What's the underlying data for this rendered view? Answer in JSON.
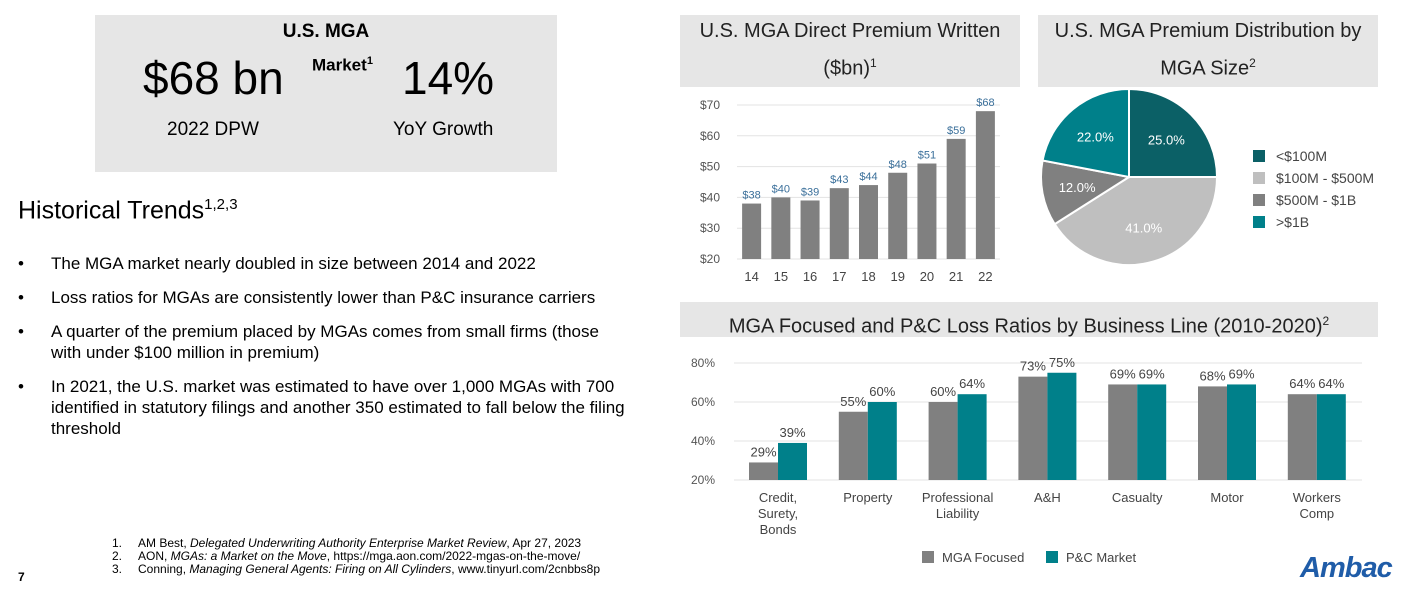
{
  "kpi": {
    "title_line1": "U.S. MGA",
    "title_line2": "Market",
    "title_sup": "1",
    "dpw_value": "$68 bn",
    "dpw_label": "2022 DPW",
    "growth_value": "14%",
    "growth_label": "YoY Growth"
  },
  "trends": {
    "heading": "Historical Trends",
    "heading_sup": "1,2,3",
    "bullets": [
      "The MGA market nearly doubled in size between 2014 and 2022",
      "Loss ratios for MGAs are consistently lower than P&C insurance carriers",
      "A quarter of the premium placed by MGAs comes from small firms (those with under $100 million in premium)",
      "In 2021, the U.S. market was estimated to have over 1,000 MGAs with 700 identified in statutory filings and another 350 estimated to fall below the filing threshold"
    ]
  },
  "footnotes": [
    {
      "num": "1.",
      "pre": "AM Best, ",
      "title": "Delegated Underwriting Authority Enterprise Market Review",
      "post": ", Apr 27, 2023"
    },
    {
      "num": "2.",
      "pre": "AON, ",
      "title": "MGAs: a Market on the Move",
      "post": ", https://mga.aon.com/2022-mgas-on-the-move/"
    },
    {
      "num": "3.",
      "pre": "Conning, ",
      "title": "Managing General Agents: Firing on All Cylinders",
      "post": ", www.tinyurl.com/2cnbbs8p"
    }
  ],
  "page_number": "7",
  "logo": "Ambac",
  "colors": {
    "gray": "#808080",
    "teal": "#00808a",
    "dark_teal": "#0b6066",
    "light_gray": "#bfbfbf",
    "header_bg": "#e6e6e6",
    "logo_blue": "#1f5ca8"
  },
  "chart_data": [
    {
      "type": "bar",
      "title": "U.S. MGA Direct  Premium Written ($bn)",
      "title_line1": "U.S. MGA Direct  Premium Written",
      "title_line2": "($bn)",
      "title_sup": "1",
      "categories": [
        "14",
        "15",
        "16",
        "17",
        "18",
        "19",
        "20",
        "21",
        "22"
      ],
      "values": [
        38,
        40,
        39,
        43,
        44,
        48,
        51,
        59,
        68
      ],
      "data_labels": [
        "$38",
        "$40",
        "$39",
        "$43",
        "$44",
        "$48",
        "$51",
        "$59",
        "$68"
      ],
      "yticks": [
        "$20",
        "$30",
        "$40",
        "$50",
        "$60",
        "$70"
      ],
      "ylim": [
        20,
        70
      ],
      "grid": true,
      "color": "#808080",
      "label_color": "#3a6f9a"
    },
    {
      "type": "pie",
      "title_line1": "U.S. MGA Premium Distribution by",
      "title_line2": "MGA Size",
      "title_sup": "2",
      "slices": [
        {
          "label": "<$100M",
          "value": 25.0,
          "text": "25.0%",
          "color": "#0b6066"
        },
        {
          "label": "$100M - $500M",
          "value": 41.0,
          "text": "41.0%",
          "color": "#bfbfbf"
        },
        {
          "label": "$500M - $1B",
          "value": 12.0,
          "text": "12.0%",
          "color": "#808080"
        },
        {
          "label": ">$1B",
          "value": 22.0,
          "text": "22.0%",
          "color": "#00808a"
        }
      ],
      "legend": "right"
    },
    {
      "type": "bar",
      "title": "MGA Focused and P&C Loss Ratios by Business Line (2010-2020)",
      "title_sup": "2",
      "categories": [
        [
          "Credit,",
          "Surety,",
          "Bonds"
        ],
        [
          "Property"
        ],
        [
          "Professional",
          "Liability"
        ],
        [
          "A&H"
        ],
        [
          "Casualty"
        ],
        [
          "Motor"
        ],
        [
          "Workers",
          "Comp"
        ]
      ],
      "series": [
        {
          "name": "MGA Focused",
          "values": [
            29,
            55,
            60,
            73,
            69,
            68,
            64
          ],
          "color": "#808080"
        },
        {
          "name": "P&C Market",
          "values": [
            39,
            60,
            64,
            75,
            69,
            69,
            64
          ],
          "color": "#00808a"
        }
      ],
      "yticks": [
        "20%",
        "40%",
        "60%",
        "80%"
      ],
      "ylim": [
        20,
        80
      ],
      "grid": true,
      "legend": "bottom"
    }
  ]
}
